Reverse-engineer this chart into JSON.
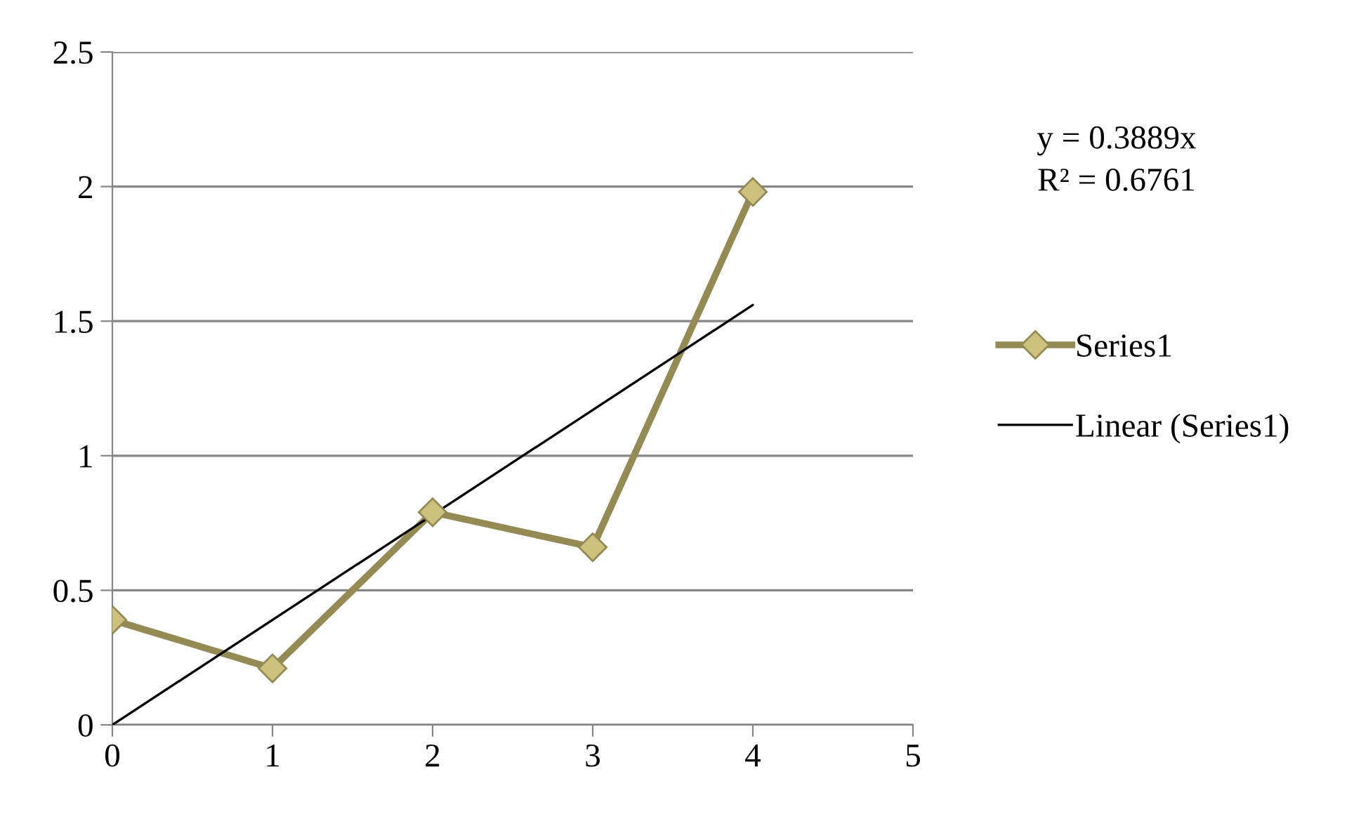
{
  "chart_data": {
    "type": "line",
    "x": [
      0,
      1,
      2,
      3,
      4
    ],
    "series": [
      {
        "name": "Series1",
        "color": "#948a54",
        "values": [
          0.39,
          0.21,
          0.79,
          0.66,
          1.98
        ],
        "marker": "diamond"
      },
      {
        "name": "Linear (Series1)",
        "type": "line",
        "color": "#000000",
        "x": [
          0,
          4
        ],
        "values": [
          0,
          1.56
        ],
        "marker": "none"
      }
    ],
    "xlim": [
      0,
      5
    ],
    "xticks": [
      0,
      1,
      2,
      3,
      4,
      5
    ],
    "ylim": [
      0,
      2.5
    ],
    "yticks": [
      0,
      0.5,
      1,
      1.5,
      2,
      2.5
    ],
    "grid": "y",
    "legend": "right",
    "annotations": [
      "y = 0.3889x",
      "R² = 0.6761"
    ]
  }
}
